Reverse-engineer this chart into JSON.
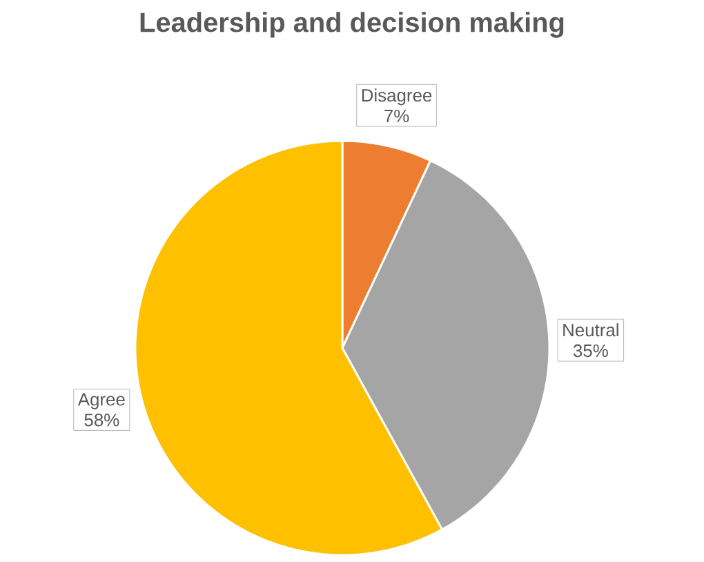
{
  "chart_data": {
    "type": "pie",
    "title": "Leadership and decision making",
    "categories": [
      "Disagree",
      "Neutral",
      "Agree"
    ],
    "values": [
      7,
      35,
      58
    ],
    "colors": [
      "#ed7d31",
      "#a5a5a5",
      "#ffc000"
    ],
    "value_labels": [
      "7%",
      "35%",
      "58%"
    ]
  }
}
